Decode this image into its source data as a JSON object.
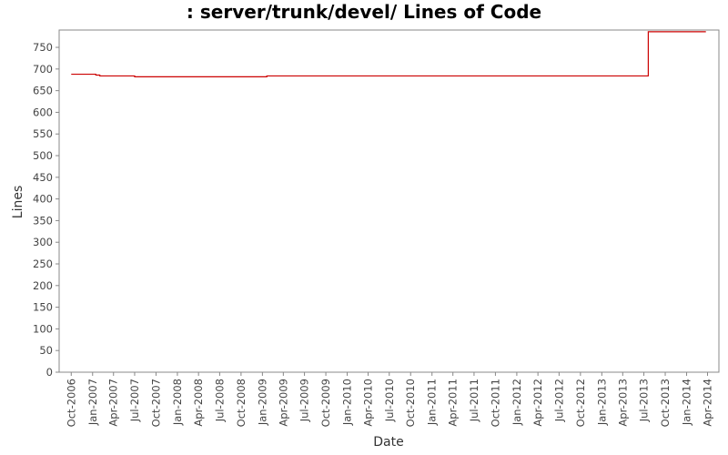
{
  "chart_data": {
    "type": "line",
    "title": ": server/trunk/devel/ Lines of Code",
    "xlabel": "Date",
    "ylabel": "Lines",
    "x_tick_labels": [
      "Oct-2006",
      "Jan-2007",
      "Apr-2007",
      "Jul-2007",
      "Oct-2007",
      "Jan-2008",
      "Apr-2008",
      "Jul-2008",
      "Oct-2008",
      "Jan-2009",
      "Apr-2009",
      "Jul-2009",
      "Oct-2009",
      "Jan-2010",
      "Apr-2010",
      "Jul-2010",
      "Oct-2010",
      "Jan-2011",
      "Apr-2011",
      "Jul-2011",
      "Oct-2011",
      "Jan-2012",
      "Apr-2012",
      "Jul-2012",
      "Oct-2012",
      "Jan-2013",
      "Apr-2013",
      "Jul-2013",
      "Oct-2013",
      "Jan-2014",
      "Apr-2014"
    ],
    "y_ticks": [
      0,
      50,
      100,
      150,
      200,
      250,
      300,
      350,
      400,
      450,
      500,
      550,
      600,
      650,
      700,
      750
    ],
    "ylim": [
      0,
      790
    ],
    "xlim": [
      "2006-08-10",
      "2014-05-20"
    ],
    "grid": false,
    "colors": {
      "line": "#cc0000",
      "axis": "#888888",
      "plot_bg": "#ffffff"
    },
    "series": [
      {
        "points": [
          [
            "2006-10-01",
            688
          ],
          [
            "2007-01-15",
            688
          ],
          [
            "2007-01-15",
            686
          ],
          [
            "2007-02-01",
            686
          ],
          [
            "2007-02-01",
            684
          ],
          [
            "2007-07-01",
            684
          ],
          [
            "2007-07-01",
            682
          ],
          [
            "2009-01-20",
            682
          ],
          [
            "2009-01-20",
            684
          ],
          [
            "2013-07-20",
            684
          ],
          [
            "2013-07-20",
            786
          ],
          [
            "2014-03-25",
            786
          ]
        ]
      }
    ]
  }
}
